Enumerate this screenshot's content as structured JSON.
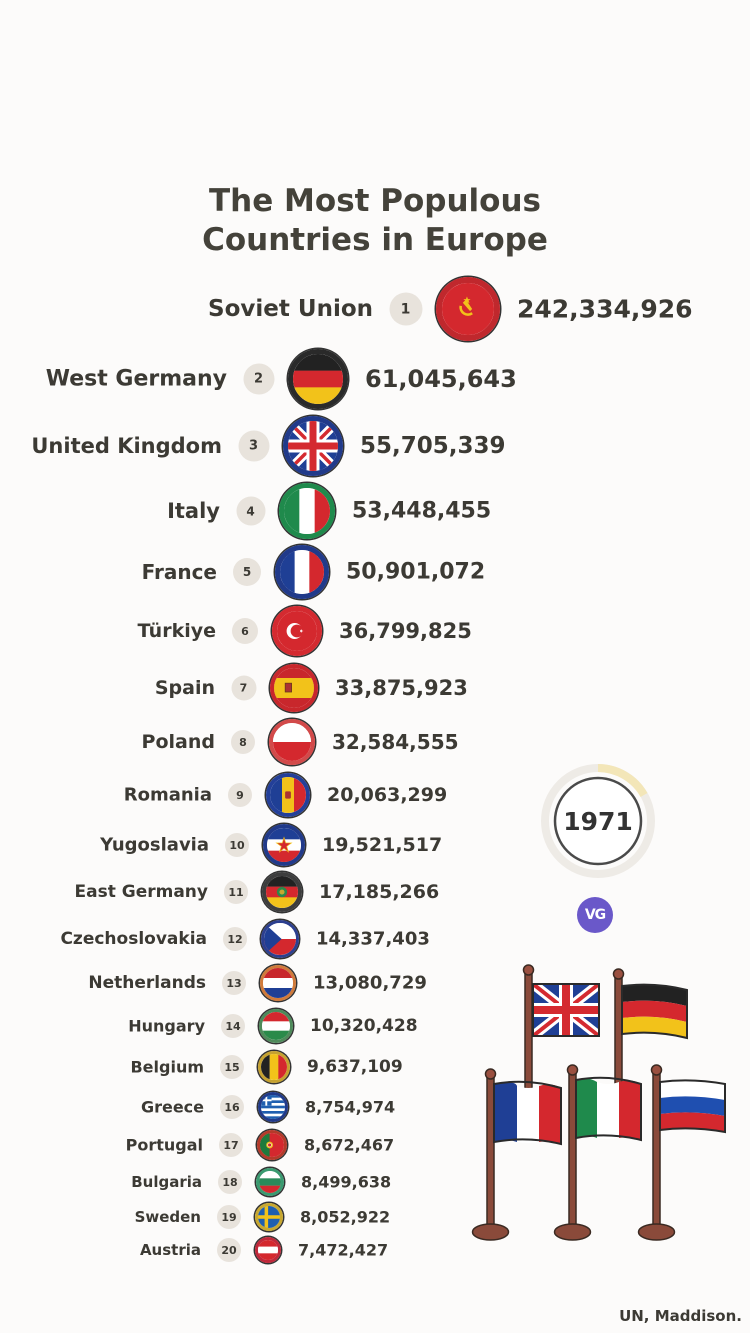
{
  "title_lines": [
    "The Most Populous",
    "Countries in Europe"
  ],
  "year": "1971",
  "logo_text": "VG",
  "source": "UN, Maddison.",
  "chart_data": {
    "type": "bar",
    "title": "The Most Populous Countries in Europe",
    "categories": [
      "Soviet Union",
      "West Germany",
      "United Kingdom",
      "Italy",
      "France",
      "Türkiye",
      "Spain",
      "Poland",
      "Romania",
      "Yugoslavia",
      "East Germany",
      "Czechoslovakia",
      "Netherlands",
      "Hungary",
      "Belgium",
      "Greece",
      "Portugal",
      "Bulgaria",
      "Sweden",
      "Austria"
    ],
    "ranks": [
      "1",
      "2",
      "3",
      "4",
      "5",
      "6",
      "7",
      "8",
      "9",
      "10",
      "11",
      "12",
      "13",
      "14",
      "15",
      "16",
      "17",
      "18",
      "19",
      "20"
    ],
    "value_labels": [
      "242,334,926",
      "61,045,643",
      "55,705,339",
      "53,448,455",
      "50,901,072",
      "36,799,825",
      "33,875,923",
      "32,584,555",
      "20,063,299",
      "19,521,517",
      "17,185,266",
      "14,337,403",
      "13,080,729",
      "10,320,428",
      "9,637,109",
      "8,754,974",
      "8,672,467",
      "8,499,638",
      "8,052,922",
      "7,472,427"
    ],
    "values": [
      242334926,
      61045643,
      55705339,
      53448455,
      50901072,
      36799825,
      33875923,
      32584555,
      20063299,
      19521517,
      17185266,
      14337403,
      13080729,
      10320428,
      9637109,
      8754974,
      8672467,
      8499638,
      8052922,
      7472427
    ],
    "flags": [
      "soviet-union-flag-icon",
      "west-germany-flag-icon",
      "united-kingdom-flag-icon",
      "italy-flag-icon",
      "france-flag-icon",
      "turkiye-flag-icon",
      "spain-flag-icon",
      "poland-flag-icon",
      "romania-flag-icon",
      "yugoslavia-flag-icon",
      "east-germany-flag-icon",
      "czechoslovakia-flag-icon",
      "netherlands-flag-icon",
      "hungary-flag-icon",
      "belgium-flag-icon",
      "greece-flag-icon",
      "portugal-flag-icon",
      "bulgaria-flag-icon",
      "sweden-flag-icon",
      "austria-flag-icon"
    ],
    "ring_colors": [
      "#c0282d",
      "#2a2a2a",
      "#213a8a",
      "#1f8a4c",
      "#213a8a",
      "#d42a30",
      "#c8272c",
      "#d24a4a",
      "#233f99",
      "#213a8a",
      "#3d3d3d",
      "#2c3f8f",
      "#d07a3a",
      "#4e8a5a",
      "#c6a230",
      "#213a8a",
      "#b43a2a",
      "#3a9a70",
      "#c8a830",
      "#c0283a"
    ]
  },
  "colors": {
    "background": "#fcfbfa",
    "text": "#3c3a34",
    "badge": "#e8e3dc",
    "logo": "#6a58c9"
  },
  "decor_flags": [
    "united-kingdom-flag-icon",
    "germany-flag-icon",
    "france-flag-icon",
    "italy-flag-icon",
    "russia-flag-icon"
  ]
}
